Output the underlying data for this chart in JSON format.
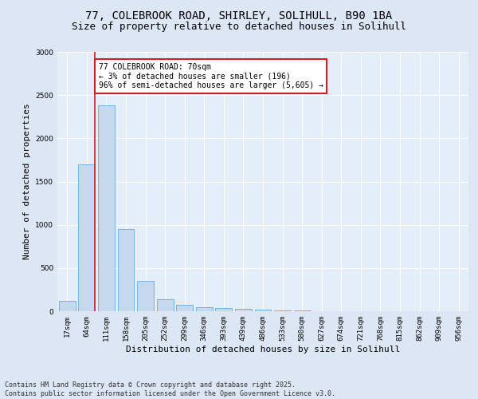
{
  "title_line1": "77, COLEBROOK ROAD, SHIRLEY, SOLIHULL, B90 1BA",
  "title_line2": "Size of property relative to detached houses in Solihull",
  "xlabel": "Distribution of detached houses by size in Solihull",
  "ylabel": "Number of detached properties",
  "categories": [
    "17sqm",
    "64sqm",
    "111sqm",
    "158sqm",
    "205sqm",
    "252sqm",
    "299sqm",
    "346sqm",
    "393sqm",
    "439sqm",
    "486sqm",
    "533sqm",
    "580sqm",
    "627sqm",
    "674sqm",
    "721sqm",
    "768sqm",
    "815sqm",
    "862sqm",
    "909sqm",
    "956sqm"
  ],
  "values": [
    120,
    1700,
    2380,
    950,
    350,
    140,
    75,
    50,
    40,
    30,
    20,
    5,
    5,
    0,
    0,
    0,
    0,
    0,
    0,
    0,
    0
  ],
  "bar_color": "#c5d8ee",
  "bar_edge_color": "#6aaad4",
  "vline_color": "#bb2222",
  "annotation_text": "77 COLEBROOK ROAD: 70sqm\n← 3% of detached houses are smaller (196)\n96% of semi-detached houses are larger (5,605) →",
  "annotation_box_color": "#ffffff",
  "annotation_box_edge_color": "#cc2222",
  "ylim": [
    0,
    3000
  ],
  "yticks": [
    0,
    500,
    1000,
    1500,
    2000,
    2500,
    3000
  ],
  "background_color": "#dce6f5",
  "plot_bg_color": "#e4eef8",
  "grid_color": "#ffffff",
  "footer_line1": "Contains HM Land Registry data © Crown copyright and database right 2025.",
  "footer_line2": "Contains public sector information licensed under the Open Government Licence v3.0.",
  "title_fontsize": 10,
  "subtitle_fontsize": 9,
  "axis_label_fontsize": 8,
  "tick_fontsize": 6.5,
  "annotation_fontsize": 7,
  "footer_fontsize": 6
}
